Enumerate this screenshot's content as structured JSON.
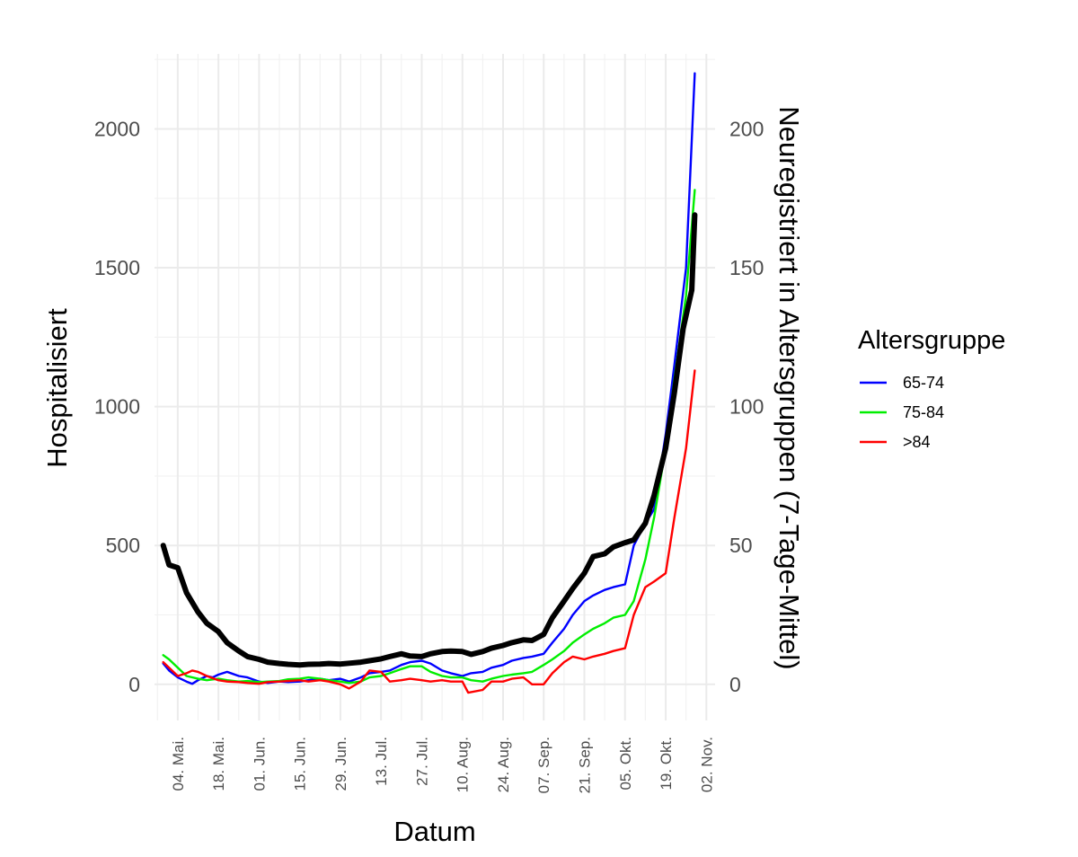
{
  "chart_data": {
    "type": "line",
    "xlabel": "Datum",
    "ylabel": "Hospitalisiert",
    "y2label": "Neuregistriert in Altersgruppen (7-Tage-Mittel)",
    "x_ticks": [
      "2020-05-04",
      "2020-05-18",
      "2020-06-01",
      "2020-06-15",
      "2020-06-29",
      "2020-07-13",
      "2020-07-27",
      "2020-08-10",
      "2020-08-24",
      "2020-09-07",
      "2020-09-21",
      "2020-10-05",
      "2020-10-19",
      "2020-11-02"
    ],
    "x_tick_labels": [
      "04. Mai.",
      "18. Mai.",
      "01. Jun.",
      "15. Jun.",
      "29. Jun.",
      "13. Jul.",
      "27. Jul.",
      "10. Aug.",
      "24. Aug.",
      "07. Sep.",
      "21. Sep.",
      "05. Okt.",
      "19. Okt.",
      "02. Nov."
    ],
    "xlim": [
      "2020-04-26",
      "2020-11-05"
    ],
    "y_ticks": [
      0,
      500,
      1000,
      1500,
      2000
    ],
    "ylim": [
      -130,
      2270
    ],
    "y2_ticks": [
      0,
      50,
      100,
      150,
      200
    ],
    "y2_ratio": 10,
    "grid": true,
    "legend": {
      "title": "Altersgruppe",
      "placement": "right",
      "entries": [
        "65-74",
        "75-84",
        ">84"
      ]
    },
    "series": [
      {
        "name": "Hospitalisiert",
        "axis": "left",
        "color": "#000000",
        "points": [
          [
            "2020-04-29",
            500
          ],
          [
            "2020-05-01",
            430
          ],
          [
            "2020-05-04",
            420
          ],
          [
            "2020-05-07",
            330
          ],
          [
            "2020-05-11",
            260
          ],
          [
            "2020-05-14",
            220
          ],
          [
            "2020-05-18",
            190
          ],
          [
            "2020-05-21",
            150
          ],
          [
            "2020-05-25",
            120
          ],
          [
            "2020-05-28",
            100
          ],
          [
            "2020-06-01",
            90
          ],
          [
            "2020-06-04",
            80
          ],
          [
            "2020-06-08",
            75
          ],
          [
            "2020-06-11",
            72
          ],
          [
            "2020-06-15",
            70
          ],
          [
            "2020-06-18",
            72
          ],
          [
            "2020-06-22",
            73
          ],
          [
            "2020-06-25",
            75
          ],
          [
            "2020-06-29",
            73
          ],
          [
            "2020-07-02",
            76
          ],
          [
            "2020-07-06",
            80
          ],
          [
            "2020-07-09",
            85
          ],
          [
            "2020-07-13",
            92
          ],
          [
            "2020-07-16",
            100
          ],
          [
            "2020-07-20",
            110
          ],
          [
            "2020-07-23",
            102
          ],
          [
            "2020-07-27",
            100
          ],
          [
            "2020-07-30",
            110
          ],
          [
            "2020-08-03",
            118
          ],
          [
            "2020-08-06",
            120
          ],
          [
            "2020-08-10",
            118
          ],
          [
            "2020-08-13",
            108
          ],
          [
            "2020-08-17",
            118
          ],
          [
            "2020-08-20",
            130
          ],
          [
            "2020-08-24",
            140
          ],
          [
            "2020-08-27",
            150
          ],
          [
            "2020-08-31",
            160
          ],
          [
            "2020-09-03",
            158
          ],
          [
            "2020-09-07",
            180
          ],
          [
            "2020-09-10",
            240
          ],
          [
            "2020-09-14",
            300
          ],
          [
            "2020-09-17",
            345
          ],
          [
            "2020-09-21",
            400
          ],
          [
            "2020-09-24",
            460
          ],
          [
            "2020-09-28",
            470
          ],
          [
            "2020-10-01",
            495
          ],
          [
            "2020-10-05",
            510
          ],
          [
            "2020-10-08",
            520
          ],
          [
            "2020-10-12",
            580
          ],
          [
            "2020-10-15",
            680
          ],
          [
            "2020-10-19",
            850
          ],
          [
            "2020-10-22",
            1050
          ],
          [
            "2020-10-25",
            1280
          ],
          [
            "2020-10-28",
            1420
          ],
          [
            "2020-10-29",
            1690
          ]
        ]
      },
      {
        "name": "65-74",
        "axis": "right",
        "color": "#0000ff",
        "points": [
          [
            "2020-04-29",
            7.5
          ],
          [
            "2020-05-01",
            5
          ],
          [
            "2020-05-04",
            2.5
          ],
          [
            "2020-05-07",
            1
          ],
          [
            "2020-05-09",
            0.2
          ],
          [
            "2020-05-11",
            1.5
          ],
          [
            "2020-05-14",
            3
          ],
          [
            "2020-05-16",
            2.5
          ],
          [
            "2020-05-18",
            3.5
          ],
          [
            "2020-05-21",
            4.5
          ],
          [
            "2020-05-25",
            3
          ],
          [
            "2020-05-28",
            2.5
          ],
          [
            "2020-06-01",
            1
          ],
          [
            "2020-06-04",
            0.5
          ],
          [
            "2020-06-08",
            1
          ],
          [
            "2020-06-11",
            0.8
          ],
          [
            "2020-06-15",
            1
          ],
          [
            "2020-06-18",
            1.5
          ],
          [
            "2020-06-22",
            2
          ],
          [
            "2020-06-25",
            1.5
          ],
          [
            "2020-06-29",
            2
          ],
          [
            "2020-07-02",
            1
          ],
          [
            "2020-07-06",
            2.5
          ],
          [
            "2020-07-09",
            4
          ],
          [
            "2020-07-13",
            4.5
          ],
          [
            "2020-07-16",
            5
          ],
          [
            "2020-07-20",
            7
          ],
          [
            "2020-07-23",
            8
          ],
          [
            "2020-07-27",
            8.5
          ],
          [
            "2020-07-30",
            7.5
          ],
          [
            "2020-08-03",
            5
          ],
          [
            "2020-08-06",
            4
          ],
          [
            "2020-08-10",
            3
          ],
          [
            "2020-08-13",
            4
          ],
          [
            "2020-08-17",
            4.5
          ],
          [
            "2020-08-20",
            6
          ],
          [
            "2020-08-24",
            7
          ],
          [
            "2020-08-27",
            8.5
          ],
          [
            "2020-08-31",
            9.5
          ],
          [
            "2020-09-03",
            10
          ],
          [
            "2020-09-07",
            11
          ],
          [
            "2020-09-10",
            15
          ],
          [
            "2020-09-14",
            20
          ],
          [
            "2020-09-17",
            25
          ],
          [
            "2020-09-21",
            30
          ],
          [
            "2020-09-24",
            32
          ],
          [
            "2020-09-28",
            34
          ],
          [
            "2020-10-01",
            35
          ],
          [
            "2020-10-05",
            36
          ],
          [
            "2020-10-08",
            50
          ],
          [
            "2020-10-12",
            58
          ],
          [
            "2020-10-15",
            63
          ],
          [
            "2020-10-19",
            90
          ],
          [
            "2020-10-22",
            115
          ],
          [
            "2020-10-26",
            150
          ],
          [
            "2020-10-29",
            220
          ]
        ]
      },
      {
        "name": "75-84",
        "axis": "right",
        "color": "#00ee00",
        "points": [
          [
            "2020-04-29",
            10.5
          ],
          [
            "2020-05-01",
            9
          ],
          [
            "2020-05-04",
            6
          ],
          [
            "2020-05-07",
            3
          ],
          [
            "2020-05-11",
            2
          ],
          [
            "2020-05-14",
            1.5
          ],
          [
            "2020-05-18",
            2
          ],
          [
            "2020-05-21",
            1.5
          ],
          [
            "2020-05-25",
            1
          ],
          [
            "2020-05-28",
            1.2
          ],
          [
            "2020-06-01",
            0.8
          ],
          [
            "2020-06-04",
            1
          ],
          [
            "2020-06-08",
            1.2
          ],
          [
            "2020-06-11",
            1.8
          ],
          [
            "2020-06-15",
            2
          ],
          [
            "2020-06-18",
            2.5
          ],
          [
            "2020-06-22",
            2
          ],
          [
            "2020-06-25",
            1.5
          ],
          [
            "2020-06-29",
            1
          ],
          [
            "2020-07-02",
            0.5
          ],
          [
            "2020-07-06",
            1
          ],
          [
            "2020-07-09",
            2.5
          ],
          [
            "2020-07-13",
            3
          ],
          [
            "2020-07-16",
            4
          ],
          [
            "2020-07-20",
            5.5
          ],
          [
            "2020-07-23",
            6.5
          ],
          [
            "2020-07-27",
            6.5
          ],
          [
            "2020-07-30",
            4.5
          ],
          [
            "2020-08-03",
            3
          ],
          [
            "2020-08-06",
            2.5
          ],
          [
            "2020-08-10",
            2.5
          ],
          [
            "2020-08-13",
            1.5
          ],
          [
            "2020-08-17",
            1
          ],
          [
            "2020-08-20",
            2
          ],
          [
            "2020-08-24",
            3
          ],
          [
            "2020-08-27",
            3.5
          ],
          [
            "2020-08-31",
            4
          ],
          [
            "2020-09-03",
            4.5
          ],
          [
            "2020-09-07",
            7
          ],
          [
            "2020-09-10",
            9
          ],
          [
            "2020-09-14",
            12
          ],
          [
            "2020-09-17",
            15
          ],
          [
            "2020-09-21",
            18
          ],
          [
            "2020-09-24",
            20
          ],
          [
            "2020-09-28",
            22
          ],
          [
            "2020-10-01",
            24
          ],
          [
            "2020-10-05",
            25
          ],
          [
            "2020-10-08",
            30
          ],
          [
            "2020-10-12",
            45
          ],
          [
            "2020-10-15",
            60
          ],
          [
            "2020-10-19",
            85
          ],
          [
            "2020-10-22",
            110
          ],
          [
            "2020-10-26",
            140
          ],
          [
            "2020-10-29",
            178
          ]
        ]
      },
      {
        "name": ">84",
        "axis": "right",
        "color": "#ff0000",
        "points": [
          [
            "2020-04-29",
            8
          ],
          [
            "2020-05-01",
            6
          ],
          [
            "2020-05-04",
            3
          ],
          [
            "2020-05-07",
            4
          ],
          [
            "2020-05-09",
            5
          ],
          [
            "2020-05-11",
            4.5
          ],
          [
            "2020-05-14",
            3
          ],
          [
            "2020-05-18",
            1.5
          ],
          [
            "2020-05-21",
            1
          ],
          [
            "2020-05-25",
            0.8
          ],
          [
            "2020-05-28",
            0.5
          ],
          [
            "2020-06-01",
            0.2
          ],
          [
            "2020-06-04",
            0.8
          ],
          [
            "2020-06-08",
            1
          ],
          [
            "2020-06-11",
            1.2
          ],
          [
            "2020-06-15",
            1.5
          ],
          [
            "2020-06-18",
            1
          ],
          [
            "2020-06-22",
            1.5
          ],
          [
            "2020-06-25",
            1
          ],
          [
            "2020-06-29",
            0
          ],
          [
            "2020-07-02",
            -1.5
          ],
          [
            "2020-07-06",
            1
          ],
          [
            "2020-07-09",
            5
          ],
          [
            "2020-07-13",
            4.5
          ],
          [
            "2020-07-16",
            1
          ],
          [
            "2020-07-20",
            1.5
          ],
          [
            "2020-07-23",
            2
          ],
          [
            "2020-07-27",
            1.5
          ],
          [
            "2020-07-30",
            1
          ],
          [
            "2020-08-03",
            1.5
          ],
          [
            "2020-08-06",
            1
          ],
          [
            "2020-08-10",
            1
          ],
          [
            "2020-08-12",
            -3
          ],
          [
            "2020-08-17",
            -2
          ],
          [
            "2020-08-20",
            1
          ],
          [
            "2020-08-24",
            1
          ],
          [
            "2020-08-27",
            2
          ],
          [
            "2020-08-31",
            2.5
          ],
          [
            "2020-09-03",
            0
          ],
          [
            "2020-09-07",
            0
          ],
          [
            "2020-09-10",
            4
          ],
          [
            "2020-09-14",
            8
          ],
          [
            "2020-09-17",
            10
          ],
          [
            "2020-09-21",
            9
          ],
          [
            "2020-09-24",
            10
          ],
          [
            "2020-09-28",
            11
          ],
          [
            "2020-10-01",
            12
          ],
          [
            "2020-10-05",
            13
          ],
          [
            "2020-10-08",
            25
          ],
          [
            "2020-10-12",
            35
          ],
          [
            "2020-10-15",
            37
          ],
          [
            "2020-10-19",
            40
          ],
          [
            "2020-10-22",
            60
          ],
          [
            "2020-10-26",
            85
          ],
          [
            "2020-10-29",
            113
          ]
        ]
      }
    ]
  }
}
